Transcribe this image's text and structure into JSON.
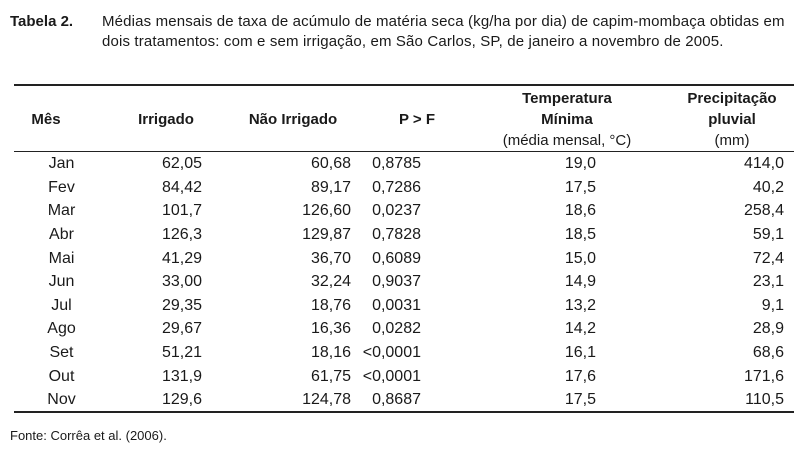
{
  "caption": {
    "label": "Tabela 2.",
    "text": "Médias mensais de taxa de acúmulo de matéria seca (kg/ha por dia) de capim-mombaça obtidas em dois tratamentos: com e sem irrigação, em São Carlos, SP, de janeiro a novembro de 2005."
  },
  "headers": {
    "mes": "Mês",
    "irrigado": "Irrigado",
    "nao_irrigado": "Não Irrigado",
    "pf": "P > F",
    "temperatura_1": "Temperatura",
    "temperatura_2": "Mínima",
    "temperatura_3": "(média mensal, °C)",
    "precipitacao_1": "Precipitação",
    "precipitacao_2": "pluvial",
    "precipitacao_3": "(mm)"
  },
  "rows": [
    [
      "Jan",
      "62,05",
      "60,68",
      "0,8785",
      "19,0",
      "414,0"
    ],
    [
      "Fev",
      "84,42",
      "89,17",
      "0,7286",
      "17,5",
      "40,2"
    ],
    [
      "Mar",
      "101,7",
      "126,60",
      "0,0237",
      "18,6",
      "258,4"
    ],
    [
      "Abr",
      "126,3",
      "129,87",
      "0,7828",
      "18,5",
      "59,1"
    ],
    [
      "Mai",
      "41,29",
      "36,70",
      "0,6089",
      "15,0",
      "72,4"
    ],
    [
      "Jun",
      "33,00",
      "32,24",
      "0,9037",
      "14,9",
      "23,1"
    ],
    [
      "Jul",
      "29,35",
      "18,76",
      "0,0031",
      "13,2",
      "9,1"
    ],
    [
      "Ago",
      "29,67",
      "16,36",
      "0,0282",
      "14,2",
      "28,9"
    ],
    [
      "Set",
      "51,21",
      "18,16",
      "<0,0001",
      "16,1",
      "68,6"
    ],
    [
      "Out",
      "131,9",
      "61,75",
      "<0,0001",
      "17,6",
      "171,6"
    ],
    [
      "Nov",
      "129,6",
      "124,78",
      "0,8687",
      "17,5",
      "110,5"
    ]
  ],
  "source": "Fonte: Corrêa et al. (2006)."
}
